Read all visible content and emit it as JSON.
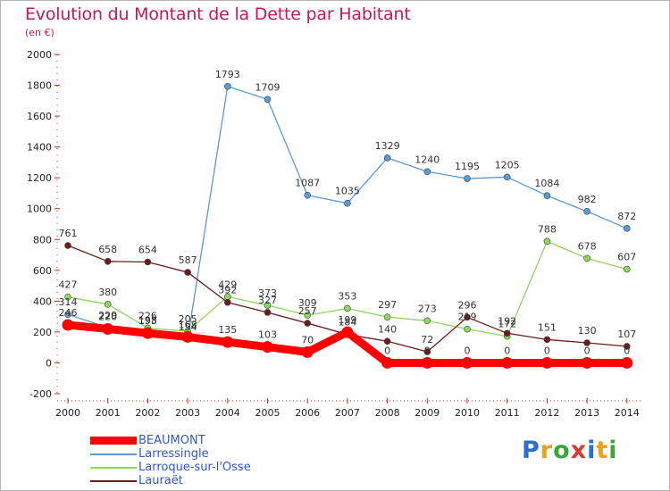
{
  "title": "Evolution du Montant de la Dette par Habitant",
  "subtitle": "(en €)",
  "chart_data": {
    "type": "line",
    "title": "Evolution du Montant de la Dette par Habitant",
    "subtitle": "(en €)",
    "xlabel": "",
    "ylabel": "",
    "x": [
      "2000",
      "2001",
      "2002",
      "2003",
      "2004",
      "2005",
      "2006",
      "2007",
      "2008",
      "2009",
      "2010",
      "2011",
      "2012",
      "2013",
      "2014"
    ],
    "ylim": [
      -200,
      2000
    ],
    "yticks": [
      -200,
      0,
      200,
      400,
      600,
      800,
      1000,
      1200,
      1400,
      1600,
      1800,
      2000
    ],
    "grid": false,
    "legend_position": "bottom-left",
    "series": [
      {
        "name": "Larressingle",
        "color": "#5b9bd5",
        "values": [
          314,
          229,
          198,
          154,
          1793,
          1709,
          1087,
          1035,
          1329,
          1240,
          1195,
          1205,
          1084,
          982,
          872
        ],
        "labels": [
          "314",
          "229",
          "198",
          "154",
          "1793",
          "1709",
          "1087",
          "1035",
          "1329",
          "1240",
          "1195",
          "1205",
          "1084",
          "982",
          "872"
        ]
      },
      {
        "name": "Larroque-sur-l'Osse",
        "color": "#8fd65c",
        "values": [
          427,
          380,
          226,
          205,
          429,
          373,
          309,
          353,
          297,
          273,
          219,
          172,
          788,
          678,
          607
        ],
        "labels": [
          "427",
          "380",
          "226",
          "205",
          "429",
          "373",
          "309",
          "353",
          "297",
          "273",
          "219",
          "172",
          "788",
          "678",
          "607"
        ]
      },
      {
        "name": "Lauraët",
        "color": "#6b1c1c",
        "values": [
          761,
          658,
          654,
          587,
          392,
          327,
          257,
          184,
          140,
          72,
          296,
          192,
          151,
          130,
          107
        ],
        "labels": [
          "761",
          "658",
          "654",
          "587",
          "392",
          "327",
          "257",
          "184",
          "140",
          "72",
          "296",
          "192",
          "151",
          "130",
          "107"
        ]
      },
      {
        "name": "BEAUMONT",
        "color": "#ff0000",
        "values": [
          246,
          220,
          193,
          168,
          135,
          103,
          70,
          199,
          0,
          0,
          0,
          0,
          0,
          0,
          0
        ],
        "labels": [
          "246",
          "220",
          "193",
          "168",
          "135",
          "103",
          "70",
          "199",
          "0",
          "0",
          "0",
          "0",
          "0",
          "0",
          "0"
        ]
      }
    ]
  },
  "legend": {
    "items": [
      {
        "name": "BEAUMONT",
        "color": "#ff0000"
      },
      {
        "name": "Larressingle",
        "color": "#5b9bd5"
      },
      {
        "name": "Larroque-sur-l'Osse",
        "color": "#8fd65c"
      },
      {
        "name": "Lauraët",
        "color": "#6b1c1c"
      }
    ]
  },
  "logo": {
    "text": "Proxiti",
    "colors": [
      "#2c6ecb",
      "#e8a21b",
      "#3aa63a",
      "#d63a3a",
      "#2c6ecb",
      "#e8a21b",
      "#3aa63a"
    ]
  }
}
